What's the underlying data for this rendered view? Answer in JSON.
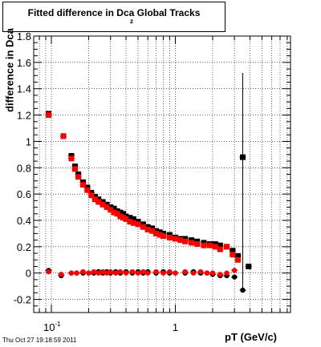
{
  "chart_data": {
    "type": "scatter",
    "title": "Fitted difference in Dca",
    "title_subscript": "z",
    "title_suffix": "Global Tracks",
    "xlabel": "pT (GeV/c)",
    "ylabel": "difference in Dca",
    "x_scale": "log",
    "xlim": [
      0.072,
      8.5
    ],
    "ylim": [
      -0.3,
      1.8
    ],
    "x_tick_labels": [
      "10^-1",
      "1"
    ],
    "y_ticks": [
      -0.2,
      0,
      0.2,
      0.4,
      0.6,
      0.8,
      1,
      1.2,
      1.4,
      1.6,
      1.8
    ],
    "grid": true,
    "series": [
      {
        "color": "#000000",
        "marker": "square",
        "points": [
          [
            0.095,
            1.21
          ],
          [
            0.125,
            1.04
          ],
          [
            0.145,
            0.89
          ],
          [
            0.155,
            0.81
          ],
          [
            0.165,
            0.75
          ],
          [
            0.18,
            0.69
          ],
          [
            0.195,
            0.65
          ],
          [
            0.21,
            0.61
          ],
          [
            0.225,
            0.58
          ],
          [
            0.24,
            0.56
          ],
          [
            0.26,
            0.54
          ],
          [
            0.28,
            0.52
          ],
          [
            0.3,
            0.5
          ],
          [
            0.32,
            0.49
          ],
          [
            0.34,
            0.47
          ],
          [
            0.36,
            0.46
          ],
          [
            0.38,
            0.45
          ],
          [
            0.4,
            0.43
          ],
          [
            0.43,
            0.42
          ],
          [
            0.46,
            0.41
          ],
          [
            0.5,
            0.39
          ],
          [
            0.55,
            0.37
          ],
          [
            0.6,
            0.35
          ],
          [
            0.65,
            0.34
          ],
          [
            0.7,
            0.32
          ],
          [
            0.75,
            0.31
          ],
          [
            0.8,
            0.3
          ],
          [
            0.9,
            0.29
          ],
          [
            1.0,
            0.27
          ],
          [
            1.1,
            0.26
          ],
          [
            1.2,
            0.26
          ],
          [
            1.35,
            0.25
          ],
          [
            1.5,
            0.24
          ],
          [
            1.7,
            0.23
          ],
          [
            1.9,
            0.22
          ],
          [
            2.1,
            0.22
          ],
          [
            2.3,
            0.21
          ],
          [
            2.6,
            0.2
          ],
          [
            2.9,
            0.17
          ],
          [
            3.2,
            0.13
          ],
          [
            3.5,
            0.88
          ],
          [
            3.9,
            0.05
          ]
        ]
      },
      {
        "color": "#ff0000",
        "marker": "square",
        "points": [
          [
            0.095,
            1.2
          ],
          [
            0.125,
            1.04
          ],
          [
            0.145,
            0.87
          ],
          [
            0.155,
            0.79
          ],
          [
            0.165,
            0.73
          ],
          [
            0.18,
            0.67
          ],
          [
            0.195,
            0.63
          ],
          [
            0.21,
            0.59
          ],
          [
            0.225,
            0.56
          ],
          [
            0.24,
            0.54
          ],
          [
            0.26,
            0.52
          ],
          [
            0.28,
            0.5
          ],
          [
            0.3,
            0.48
          ],
          [
            0.32,
            0.46
          ],
          [
            0.34,
            0.45
          ],
          [
            0.36,
            0.43
          ],
          [
            0.38,
            0.42
          ],
          [
            0.4,
            0.41
          ],
          [
            0.43,
            0.39
          ],
          [
            0.46,
            0.38
          ],
          [
            0.5,
            0.37
          ],
          [
            0.55,
            0.35
          ],
          [
            0.6,
            0.33
          ],
          [
            0.65,
            0.32
          ],
          [
            0.7,
            0.3
          ],
          [
            0.75,
            0.29
          ],
          [
            0.8,
            0.28
          ],
          [
            0.9,
            0.27
          ],
          [
            1.0,
            0.26
          ],
          [
            1.1,
            0.25
          ],
          [
            1.2,
            0.24
          ],
          [
            1.35,
            0.23
          ],
          [
            1.5,
            0.22
          ],
          [
            1.7,
            0.21
          ],
          [
            1.9,
            0.21
          ],
          [
            2.1,
            0.2
          ],
          [
            2.3,
            0.18
          ],
          [
            2.6,
            0.2
          ],
          [
            2.9,
            0.14
          ],
          [
            3.2,
            0.1
          ]
        ]
      },
      {
        "color": "#000000",
        "marker": "circle",
        "points": [
          [
            0.095,
            0.02
          ],
          [
            0.12,
            -0.02
          ],
          [
            0.145,
            0.0
          ],
          [
            0.16,
            0.0
          ],
          [
            0.18,
            0.0
          ],
          [
            0.2,
            0.0
          ],
          [
            0.22,
            0.0
          ],
          [
            0.24,
            0.01
          ],
          [
            0.26,
            0.0
          ],
          [
            0.28,
            0.01
          ],
          [
            0.3,
            0.0
          ],
          [
            0.33,
            0.01
          ],
          [
            0.36,
            0.0
          ],
          [
            0.4,
            0.01
          ],
          [
            0.45,
            0.0
          ],
          [
            0.5,
            0.01
          ],
          [
            0.55,
            0.0
          ],
          [
            0.6,
            0.01
          ],
          [
            0.7,
            0.0
          ],
          [
            0.8,
            0.01
          ],
          [
            0.9,
            0.0
          ],
          [
            1.0,
            0.0
          ],
          [
            1.2,
            0.0
          ],
          [
            1.4,
            0.01
          ],
          [
            1.6,
            0.0
          ],
          [
            1.8,
            0.0
          ],
          [
            2.0,
            -0.01
          ],
          [
            2.3,
            -0.02
          ],
          [
            2.6,
            -0.02
          ],
          [
            3.0,
            -0.03
          ],
          [
            3.5,
            -0.13
          ]
        ]
      },
      {
        "color": "#ff0000",
        "marker": "circle",
        "points": [
          [
            0.095,
            0.01
          ],
          [
            0.12,
            -0.01
          ],
          [
            0.145,
            0.0
          ],
          [
            0.16,
            0.0
          ],
          [
            0.18,
            0.01
          ],
          [
            0.2,
            0.0
          ],
          [
            0.22,
            0.01
          ],
          [
            0.24,
            0.0
          ],
          [
            0.26,
            0.01
          ],
          [
            0.28,
            0.0
          ],
          [
            0.3,
            0.01
          ],
          [
            0.33,
            0.0
          ],
          [
            0.36,
            0.01
          ],
          [
            0.4,
            0.0
          ],
          [
            0.45,
            0.01
          ],
          [
            0.5,
            0.0
          ],
          [
            0.55,
            0.01
          ],
          [
            0.6,
            0.0
          ],
          [
            0.7,
            0.01
          ],
          [
            0.8,
            0.0
          ],
          [
            0.9,
            0.01
          ],
          [
            1.0,
            0.0
          ],
          [
            1.2,
            0.01
          ],
          [
            1.4,
            0.0
          ],
          [
            1.6,
            0.01
          ],
          [
            1.8,
            0.0
          ],
          [
            2.0,
            0.0
          ],
          [
            2.3,
            -0.01
          ],
          [
            2.6,
            0.0
          ],
          [
            3.0,
            0.02
          ]
        ]
      }
    ],
    "error_bars": [
      {
        "x": 3.5,
        "y_low": -0.13,
        "y_high": 1.52,
        "color": "#000000"
      }
    ]
  },
  "timestamp": "Thu Oct 27 19:18:59 2011"
}
